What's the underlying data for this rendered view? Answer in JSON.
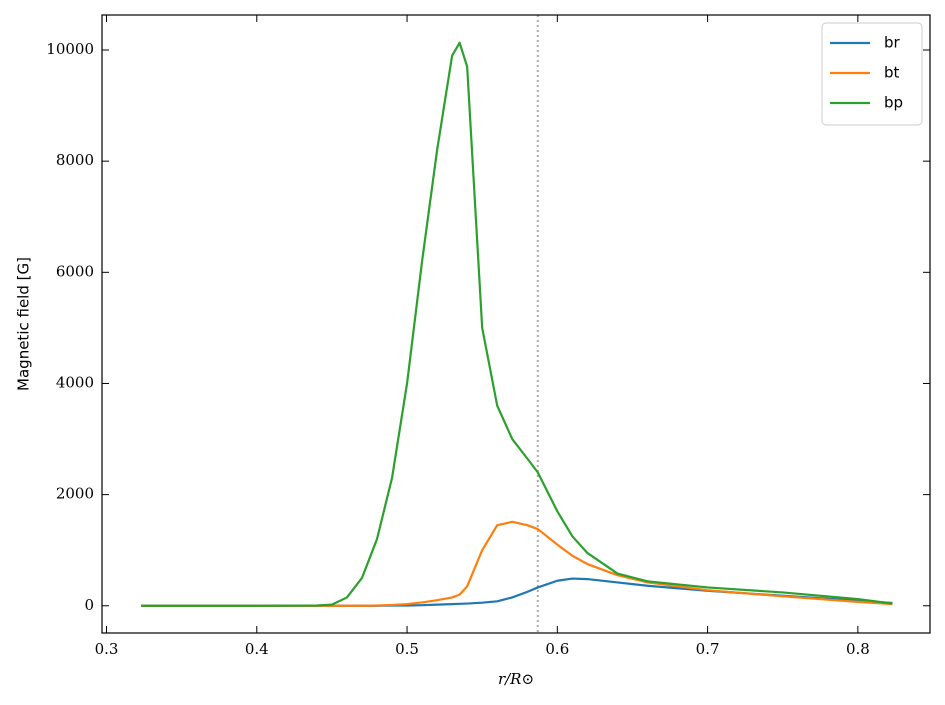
{
  "chart_data": {
    "type": "line",
    "xlabel": "r/R⊙",
    "ylabel": "Magnetic field [G]",
    "x": [
      0.323,
      0.35,
      0.4,
      0.44,
      0.45,
      0.46,
      0.47,
      0.48,
      0.49,
      0.5,
      0.51,
      0.52,
      0.53,
      0.535,
      0.54,
      0.55,
      0.56,
      0.57,
      0.58,
      0.587,
      0.6,
      0.61,
      0.62,
      0.64,
      0.66,
      0.7,
      0.75,
      0.8,
      0.823
    ],
    "series": [
      {
        "name": "br",
        "color": "#1f77b4",
        "values": [
          0,
          0,
          0,
          0,
          0,
          0,
          0,
          0,
          5,
          5,
          10,
          20,
          30,
          35,
          40,
          55,
          80,
          150,
          250,
          330,
          450,
          490,
          480,
          420,
          360,
          270,
          180,
          90,
          50
        ]
      },
      {
        "name": "bt",
        "color": "#ff7f0e",
        "values": [
          0,
          0,
          0,
          0,
          0,
          0,
          0,
          5,
          15,
          30,
          60,
          100,
          150,
          200,
          350,
          1000,
          1450,
          1510,
          1450,
          1380,
          1100,
          900,
          750,
          550,
          420,
          280,
          170,
          70,
          30
        ]
      },
      {
        "name": "bp",
        "color": "#2ca02c",
        "values": [
          0,
          0,
          0,
          5,
          20,
          150,
          500,
          1200,
          2300,
          4000,
          6200,
          8200,
          9900,
          10130,
          9700,
          5000,
          3600,
          3000,
          2650,
          2400,
          1700,
          1250,
          950,
          580,
          440,
          330,
          240,
          120,
          40
        ]
      }
    ],
    "vline": 0.587,
    "vline_color": "#aaaaaa",
    "xlim": [
      0.297,
      0.848
    ],
    "ylim": [
      -490,
      10630
    ],
    "xticks": [
      0.3,
      0.4,
      0.5,
      0.6,
      0.7,
      0.8
    ],
    "yticks": [
      0,
      2000,
      4000,
      6000,
      8000,
      10000
    ],
    "legend": "upper right"
  }
}
